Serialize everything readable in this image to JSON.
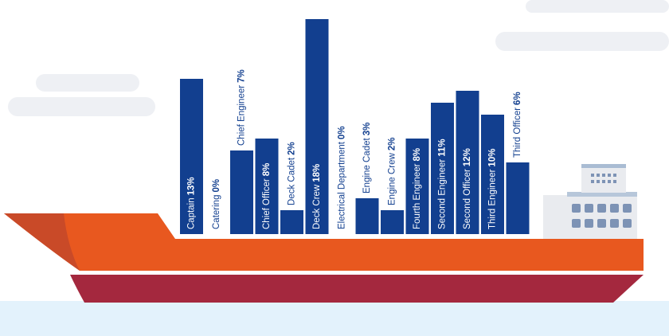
{
  "chart_data": {
    "type": "bar",
    "categories": [
      "Captain",
      "Catering",
      "Chief Engineer",
      "Chief Officer",
      "Deck Cadet",
      "Deck Crew",
      "Electrical Department",
      "Engine Cadet",
      "Engine Crew",
      "Fourth Engineer",
      "Second Engineer",
      "Second Officer",
      "Third Engineer",
      "Third Officer"
    ],
    "values": [
      13,
      0,
      7,
      8,
      2,
      18,
      0,
      3,
      2,
      8,
      11,
      12,
      10,
      6
    ],
    "value_labels": [
      "13%",
      "0%",
      "7%",
      "8%",
      "2%",
      "18%",
      "0%",
      "3%",
      "2%",
      "8%",
      "11%",
      "12%",
      "10%",
      "6%"
    ],
    "color": "#123f8f"
  }
}
